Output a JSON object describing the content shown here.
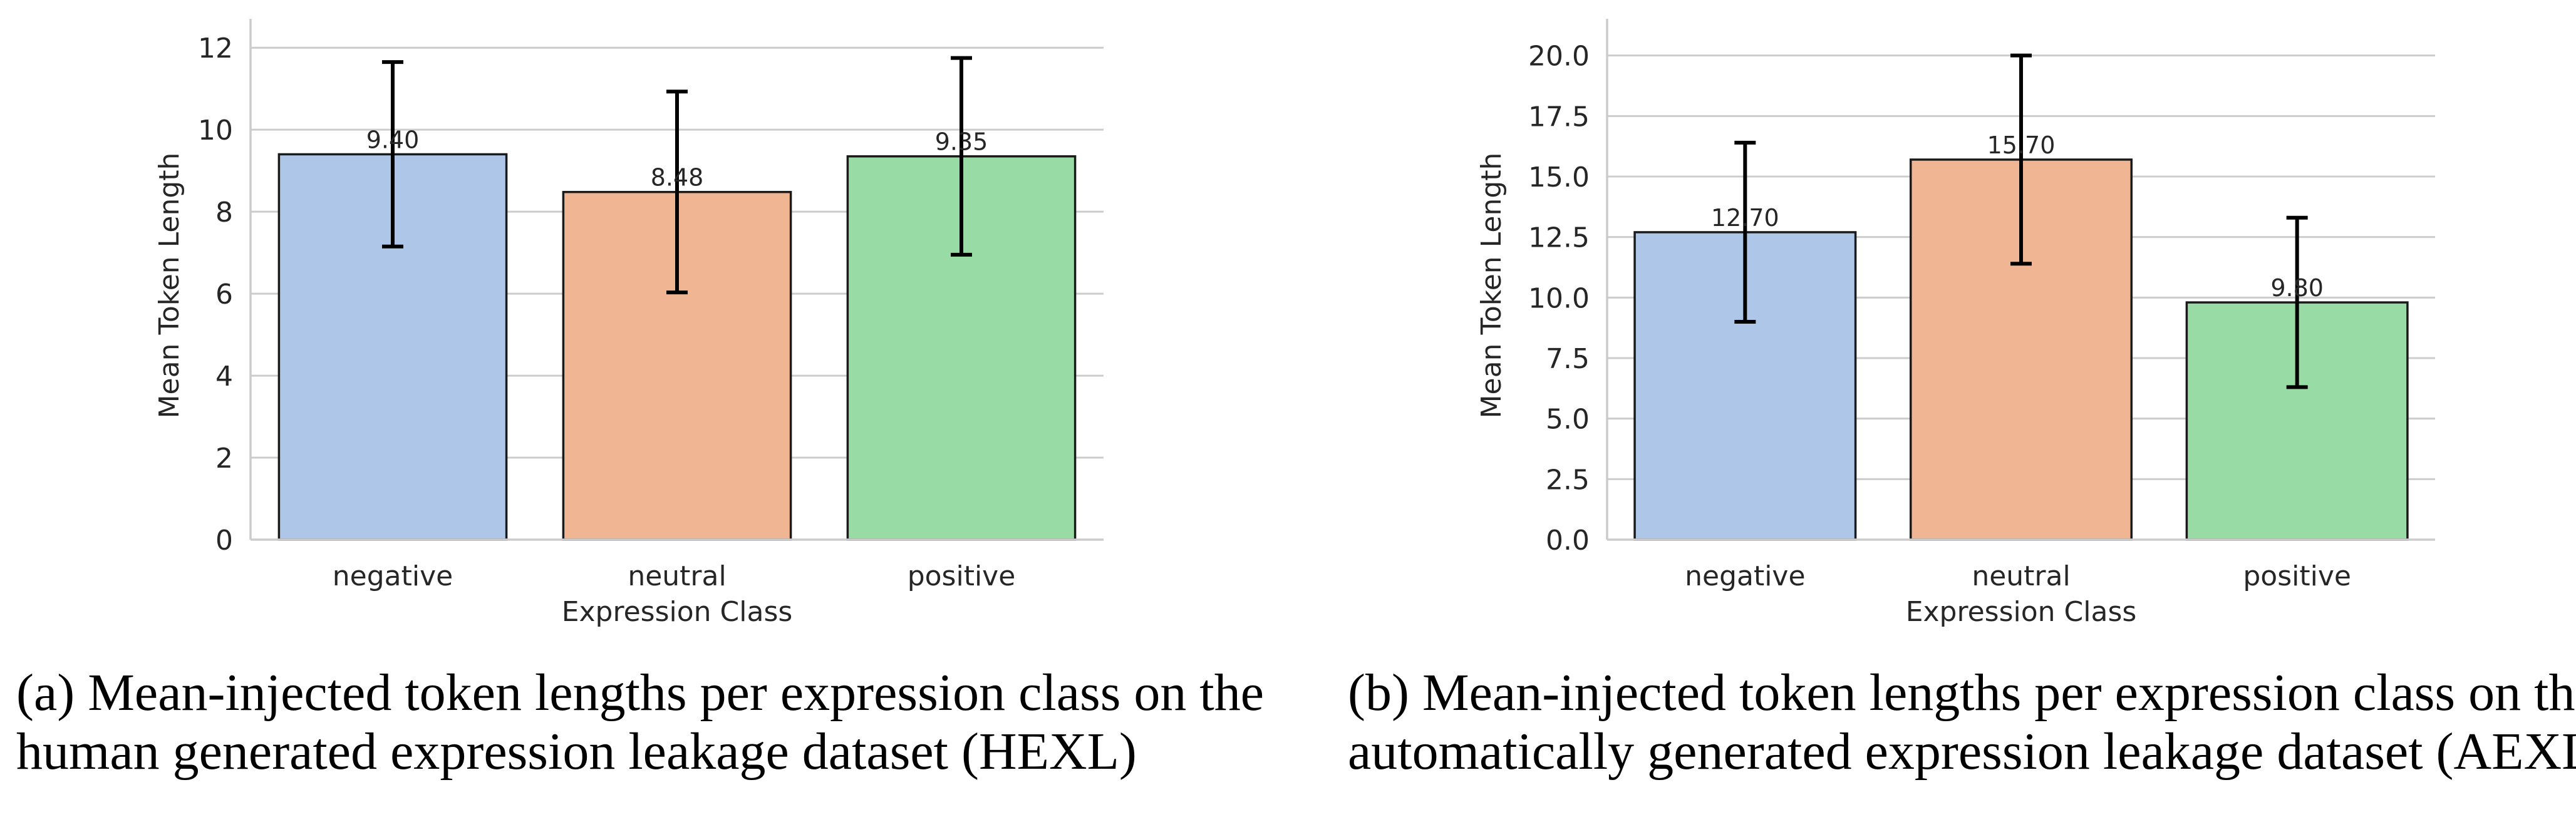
{
  "chart_data": [
    {
      "type": "bar",
      "xlabel": "Expression Class",
      "ylabel": "Mean Token Length",
      "categories": [
        "negative",
        "neutral",
        "positive"
      ],
      "values": [
        9.4,
        8.48,
        9.35
      ],
      "value_labels": [
        "9.40",
        "8.48",
        "9.35"
      ],
      "errors": [
        2.25,
        2.45,
        2.4
      ],
      "ylim": [
        0,
        12.4
      ],
      "yticks": [
        0,
        2,
        4,
        6,
        8,
        10,
        12
      ],
      "ytick_labels": [
        "0",
        "2",
        "4",
        "6",
        "8",
        "10",
        "12"
      ],
      "colors": [
        "#aec7e8",
        "#f0b592",
        "#99dba5"
      ],
      "grid": true,
      "caption_line1": "(a) Mean-injected token lengths per expression class on the",
      "caption_line2": "human generated expression leakage dataset (HEXL)"
    },
    {
      "type": "bar",
      "xlabel": "Expression Class",
      "ylabel": "Mean Token Length",
      "categories": [
        "negative",
        "neutral",
        "positive"
      ],
      "values": [
        12.7,
        15.7,
        9.8
      ],
      "value_labels": [
        "12.70",
        "15.70",
        "9.80"
      ],
      "errors": [
        3.7,
        4.3,
        3.5
      ],
      "ylim": [
        0,
        21
      ],
      "yticks": [
        0,
        2.5,
        5,
        7.5,
        10,
        12.5,
        15,
        17.5,
        20
      ],
      "ytick_labels": [
        "0.0",
        "2.5",
        "5.0",
        "7.5",
        "10.0",
        "12.5",
        "15.0",
        "17.5",
        "20.0"
      ],
      "colors": [
        "#aec7e8",
        "#f0b592",
        "#99dba5"
      ],
      "grid": true,
      "caption_line1": "(b) Mean-injected token lengths per expression class on the",
      "caption_line2": "automatically generated expression leakage dataset (AEXL)"
    }
  ]
}
